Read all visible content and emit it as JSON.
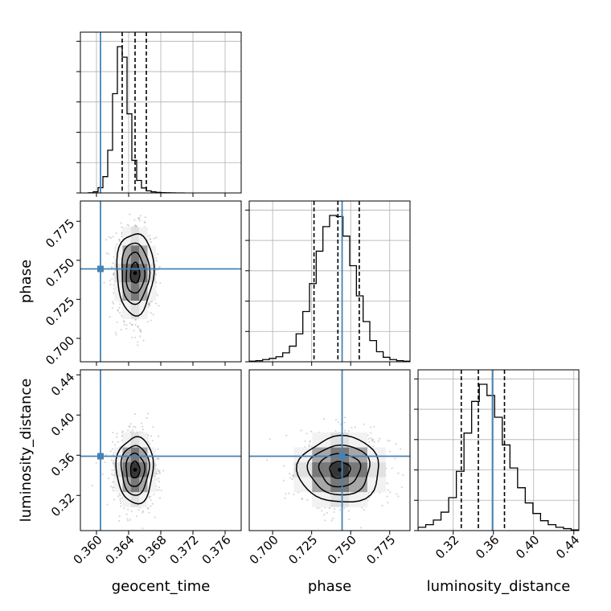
{
  "colors": {
    "truth": "#4682b4",
    "hist": "#000000",
    "grid": "#b0b0b0",
    "scatter": "#8c8c8c"
  },
  "chart_data": {
    "type": "corner",
    "parameters": [
      {
        "name": "geocent_time",
        "label": "geocent_time",
        "truth": 0.3605,
        "median": 0.3648,
        "ci": [
          0.3632,
          0.3662
        ],
        "range": [
          0.358,
          0.378
        ],
        "ticks": [
          0.36,
          0.364,
          0.368,
          0.372,
          0.376
        ],
        "tick_labels": [
          "0.360",
          "0.364",
          "0.368",
          "0.372",
          "0.376"
        ]
      },
      {
        "name": "phase",
        "label": "phase",
        "truth": 0.7445,
        "median": 0.7418,
        "ci": [
          0.7265,
          0.7555
        ],
        "range": [
          0.685,
          0.788
        ],
        "ticks": [
          0.7,
          0.725,
          0.75,
          0.775
        ],
        "tick_labels": [
          "0.700",
          "0.725",
          "0.750",
          "0.775"
        ]
      },
      {
        "name": "luminosity_distance",
        "label": "luminosity_distance",
        "truth": 0.359,
        "median": 0.345,
        "ci": [
          0.328,
          0.371
        ],
        "range": [
          0.285,
          0.445
        ],
        "ticks": [
          0.32,
          0.36,
          0.4,
          0.44
        ],
        "tick_labels": [
          "0.32",
          "0.36",
          "0.40",
          "0.44"
        ]
      }
    ],
    "histograms": [
      {
        "param": "geocent_time",
        "edges_range": [
          0.359,
          0.371
        ],
        "counts": [
          2,
          12,
          55,
          170,
          445,
          1035,
          1525,
          1415,
          825,
          340,
          130,
          52,
          22,
          12,
          6,
          3,
          2,
          1,
          0,
          0
        ]
      },
      {
        "param": "phase",
        "edges_range": [
          0.685,
          0.788
        ],
        "counts": [
          1,
          2,
          4,
          6,
          9,
          16,
          28,
          50,
          90,
          140,
          198,
          242,
          262,
          260,
          225,
          172,
          118,
          72,
          38,
          18,
          8,
          4,
          2,
          1
        ]
      },
      {
        "param": "luminosity_distance",
        "edges_range": [
          0.285,
          0.445
        ],
        "counts": [
          5,
          9,
          16,
          28,
          50,
          90,
          148,
          196,
          222,
          205,
          172,
          130,
          95,
          65,
          42,
          26,
          15,
          9,
          5,
          3,
          1
        ]
      }
    ],
    "posterior_2d": [
      {
        "x": "geocent_time",
        "y": "phase",
        "center": [
          0.3648,
          0.7418
        ],
        "sigma": [
          0.00115,
          0.0131
        ],
        "rho": 0.0
      },
      {
        "x": "geocent_time",
        "y": "luminosity_distance",
        "center": [
          0.3648,
          0.3455
        ],
        "sigma": [
          0.00115,
          0.0165
        ],
        "rho": 0.0
      },
      {
        "x": "phase",
        "y": "luminosity_distance",
        "center": [
          0.743,
          0.3455
        ],
        "sigma": [
          0.0131,
          0.0165
        ],
        "rho": 0.0
      }
    ],
    "contour_levels": [
      0.118,
      0.393,
      0.675,
      0.864
    ],
    "grid": true
  }
}
